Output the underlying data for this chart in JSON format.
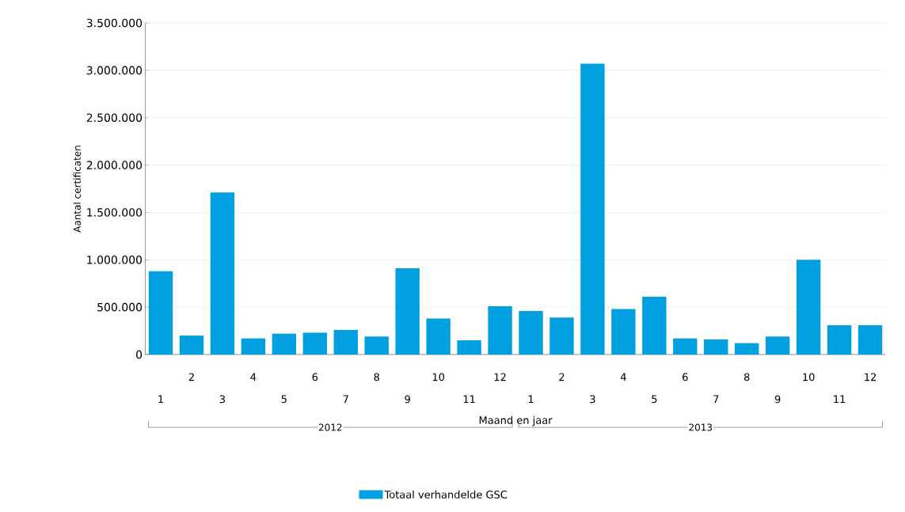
{
  "chart_data": {
    "type": "bar",
    "xlabel": "Maand en jaar",
    "ylabel": "Aantal certificaten",
    "categories": [
      "1",
      "2",
      "3",
      "4",
      "5",
      "6",
      "7",
      "8",
      "9",
      "10",
      "11",
      "12",
      "1",
      "2",
      "3",
      "4",
      "5",
      "6",
      "7",
      "8",
      "9",
      "10",
      "11",
      "12"
    ],
    "series": [
      {
        "name": "Totaal verhandelde GSC",
        "color": "#009fdf",
        "values": [
          880000,
          200000,
          1710000,
          170000,
          220000,
          230000,
          260000,
          190000,
          910000,
          380000,
          150000,
          510000,
          460000,
          390000,
          3070000,
          480000,
          610000,
          170000,
          160000,
          120000,
          190000,
          1000000,
          310000,
          310000
        ]
      }
    ],
    "annotations": [
      "2012",
      "2013"
    ],
    "ylim": [
      0,
      3500000
    ],
    "yticks": [
      {
        "value": 0,
        "label": "0"
      },
      {
        "value": 500000,
        "label": "500.000"
      },
      {
        "value": 1000000,
        "label": "1.000.000"
      },
      {
        "value": 1500000,
        "label": "1.500.000"
      },
      {
        "value": 2000000,
        "label": "2.000.000"
      },
      {
        "value": 2500000,
        "label": "2.500.000"
      },
      {
        "value": 3000000,
        "label": "3.000.000"
      },
      {
        "value": 3500000,
        "label": "3.500.000"
      }
    ],
    "grid": "y",
    "legend": "bottom"
  }
}
